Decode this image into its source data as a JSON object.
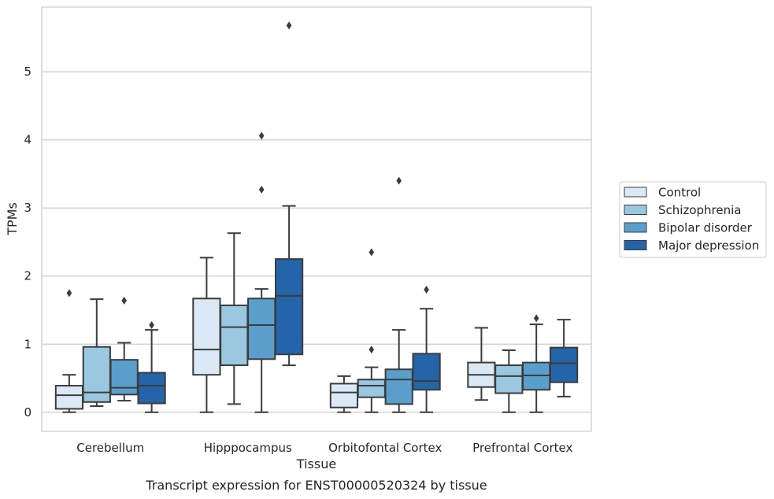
{
  "chart_data": {
    "type": "box",
    "title": "",
    "caption": "Transcript expression for ENST00000520324 by tissue",
    "xlabel": "Tissue",
    "ylabel": "TPMs",
    "ylim": [
      -0.28,
      5.95
    ],
    "yticks": [
      0,
      1,
      2,
      3,
      4,
      5
    ],
    "grid": "horizontal",
    "legend_position": "right",
    "categories": [
      "Cerebellum",
      "Hipppocampus",
      "Orbitofontal Cortex",
      "Prefrontal Cortex"
    ],
    "series": [
      {
        "name": "Control",
        "color": "#dbe9f6",
        "boxes": [
          {
            "whisker_low": 0.0,
            "q1": 0.05,
            "median": 0.25,
            "q3": 0.39,
            "whisker_high": 0.55,
            "outliers": [
              1.75
            ]
          },
          {
            "whisker_low": 0.0,
            "q1": 0.55,
            "median": 0.92,
            "q3": 1.67,
            "whisker_high": 2.27,
            "outliers": []
          },
          {
            "whisker_low": 0.0,
            "q1": 0.07,
            "median": 0.29,
            "q3": 0.42,
            "whisker_high": 0.53,
            "outliers": []
          },
          {
            "whisker_low": 0.18,
            "q1": 0.37,
            "median": 0.55,
            "q3": 0.73,
            "whisker_high": 1.24,
            "outliers": []
          }
        ]
      },
      {
        "name": "Schizophrenia",
        "color": "#9ac8e0",
        "boxes": [
          {
            "whisker_low": 0.09,
            "q1": 0.15,
            "median": 0.29,
            "q3": 0.96,
            "whisker_high": 1.66,
            "outliers": []
          },
          {
            "whisker_low": 0.12,
            "q1": 0.69,
            "median": 1.25,
            "q3": 1.57,
            "whisker_high": 2.63,
            "outliers": []
          },
          {
            "whisker_low": 0.0,
            "q1": 0.22,
            "median": 0.39,
            "q3": 0.48,
            "whisker_high": 0.66,
            "outliers": [
              0.92,
              2.35
            ]
          },
          {
            "whisker_low": 0.0,
            "q1": 0.28,
            "median": 0.53,
            "q3": 0.69,
            "whisker_high": 0.91,
            "outliers": []
          }
        ]
      },
      {
        "name": "Bipolar disorder",
        "color": "#5a9fcc",
        "boxes": [
          {
            "whisker_low": 0.17,
            "q1": 0.26,
            "median": 0.36,
            "q3": 0.77,
            "whisker_high": 1.02,
            "outliers": [
              1.64
            ]
          },
          {
            "whisker_low": 0.0,
            "q1": 0.78,
            "median": 1.28,
            "q3": 1.67,
            "whisker_high": 1.81,
            "outliers": [
              3.27,
              4.06
            ]
          },
          {
            "whisker_low": 0.0,
            "q1": 0.12,
            "median": 0.48,
            "q3": 0.63,
            "whisker_high": 1.21,
            "outliers": [
              3.4
            ]
          },
          {
            "whisker_low": 0.0,
            "q1": 0.33,
            "median": 0.54,
            "q3": 0.73,
            "whisker_high": 1.29,
            "outliers": [
              1.38
            ]
          }
        ]
      },
      {
        "name": "Major depression",
        "color": "#2464a8",
        "boxes": [
          {
            "whisker_low": 0.0,
            "q1": 0.13,
            "median": 0.39,
            "q3": 0.58,
            "whisker_high": 1.21,
            "outliers": [
              1.28
            ]
          },
          {
            "whisker_low": 0.69,
            "q1": 0.85,
            "median": 1.71,
            "q3": 2.25,
            "whisker_high": 3.03,
            "outliers": [
              5.68
            ]
          },
          {
            "whisker_low": 0.0,
            "q1": 0.33,
            "median": 0.46,
            "q3": 0.86,
            "whisker_high": 1.52,
            "outliers": [
              1.8
            ]
          },
          {
            "whisker_low": 0.23,
            "q1": 0.44,
            "median": 0.72,
            "q3": 0.95,
            "whisker_high": 1.36,
            "outliers": []
          }
        ]
      }
    ]
  },
  "colors": {
    "background": "#ffffff",
    "grid": "#cccccc",
    "frame": "#cccccc",
    "box_line": "#3c3c3c",
    "text": "#262626"
  }
}
